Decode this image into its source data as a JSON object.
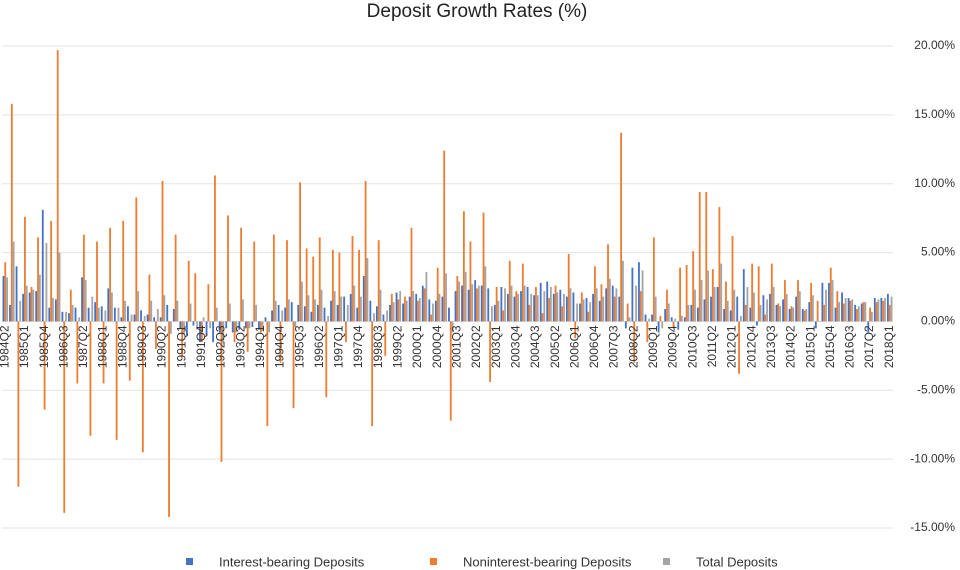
{
  "chart_data": {
    "type": "bar",
    "title": "Deposit Growth Rates (%)",
    "categories": [
      "1984Q2",
      null,
      null,
      "1985Q1",
      null,
      null,
      "1985Q4",
      null,
      null,
      "1986Q3",
      null,
      null,
      "1987Q2",
      null,
      null,
      "1988Q1",
      null,
      null,
      "1988Q4",
      null,
      null,
      "1989Q3",
      null,
      null,
      "1990Q2",
      null,
      null,
      "1991Q1",
      null,
      null,
      "1991Q4",
      null,
      null,
      "1992Q3",
      null,
      null,
      "1993Q2",
      null,
      null,
      "1994Q1",
      null,
      null,
      "1994Q4",
      null,
      null,
      "1995Q3",
      null,
      null,
      "1996Q2",
      null,
      null,
      "1997Q1",
      null,
      null,
      "1997Q4",
      null,
      null,
      "1998Q3",
      null,
      null,
      "1999Q2",
      null,
      null,
      "2000Q1",
      null,
      null,
      "2000Q4",
      null,
      null,
      "2001Q3",
      null,
      null,
      "2002Q2",
      null,
      null,
      "2003Q1",
      null,
      null,
      "2003Q4",
      null,
      null,
      "2004Q3",
      null,
      null,
      "2005Q2",
      null,
      null,
      "2006Q1",
      null,
      null,
      "2006Q4",
      null,
      null,
      "2007Q3",
      null,
      null,
      "2008Q2",
      null,
      null,
      "2009Q1",
      null,
      null,
      "2009Q4",
      null,
      null,
      "2010Q3",
      null,
      null,
      "2011Q2",
      null,
      null,
      "2012Q1",
      null,
      null,
      "2012Q4",
      null,
      null,
      "2013Q3",
      null,
      null,
      "2014Q2",
      null,
      null,
      "2015Q1",
      null,
      null,
      "2015Q4",
      null,
      null,
      "2016Q3",
      null,
      null,
      "2017Q2",
      null,
      null,
      "2018Q1"
    ],
    "series": [
      {
        "name": "Interest-bearing Deposits",
        "color": "#4472c4",
        "values": [
          3.3,
          1.2,
          4.0,
          2.0,
          2.1,
          2.2,
          8.1,
          1.0,
          1.6,
          0.7,
          0.6,
          1.0,
          3.2,
          1.0,
          1.4,
          1.1,
          2.4,
          1.0,
          0.3,
          1.1,
          0.5,
          0.8,
          0.5,
          0.3,
          0.3,
          1.2,
          0.9,
          -0.5,
          -1.0,
          -0.3,
          -1.5,
          -1.0,
          -1.5,
          -0.8,
          -0.5,
          -0.8,
          -0.6,
          -0.5,
          -0.4,
          -0.6,
          0.3,
          0.8,
          1.2,
          1.0,
          1.4,
          1.2,
          1.1,
          0.7,
          1.2,
          1.0,
          1.5,
          1.2,
          1.8,
          2.0,
          1.0,
          3.3,
          1.5,
          1.1,
          0.5,
          1.2,
          2.1,
          1.3,
          1.8,
          2.0,
          2.6,
          1.6,
          1.5,
          1.8,
          1.0,
          2.2,
          2.6,
          2.3,
          3.0,
          2.6,
          2.4,
          1.2,
          2.5,
          2.0,
          1.8,
          2.2,
          2.5,
          1.9,
          2.8,
          2.9,
          2.0,
          2.3,
          1.8,
          2.1,
          1.3,
          1.7,
          2.0,
          1.5,
          2.4,
          2.6,
          1.8,
          -0.5,
          3.9,
          4.3,
          0.5,
          0.5,
          -0.8,
          0.9,
          0.3,
          -0.6,
          0.3,
          1.2,
          1.0,
          1.6,
          1.8,
          2.5,
          0.9,
          0.8,
          1.8,
          3.8,
          1.0,
          -0.3,
          1.9,
          2.0,
          1.2,
          1.6,
          0.9,
          1.8,
          0.9,
          1.4,
          -0.5,
          2.8,
          2.8,
          1.0,
          2.1,
          1.7,
          1.2,
          1.3,
          -0.8,
          1.7,
          1.7,
          2.0
        ]
      },
      {
        "name": "Noninterest-bearing Deposits",
        "color": "#ed7d31",
        "values": [
          4.3,
          15.8,
          -12.0,
          7.6,
          2.5,
          6.1,
          -6.4,
          7.3,
          19.7,
          -13.9,
          2.3,
          -4.5,
          6.3,
          -8.3,
          5.8,
          -4.5,
          6.8,
          -8.6,
          7.3,
          -4.3,
          9.0,
          -9.5,
          3.4,
          -2.0,
          10.2,
          -14.2,
          6.3,
          -2.5,
          4.4,
          3.5,
          -1.5,
          2.7,
          10.6,
          -10.2,
          7.7,
          -1.5,
          6.8,
          -2.2,
          5.8,
          -0.8,
          -7.6,
          6.3,
          -3.0,
          5.9,
          -6.3,
          10.1,
          5.3,
          4.7,
          6.1,
          -5.5,
          5.2,
          5.0,
          -1.5,
          6.2,
          5.2,
          10.2,
          -7.6,
          5.9,
          -2.5,
          2.0,
          1.6,
          1.8,
          6.8,
          1.5,
          2.4,
          0.5,
          3.9,
          12.4,
          -7.2,
          3.3,
          8.0,
          5.8,
          2.4,
          7.9,
          -4.4,
          2.5,
          0.8,
          4.4,
          2.2,
          4.2,
          1.2,
          2.5,
          0.6,
          1.7,
          2.6,
          1.1,
          4.9,
          -1.2,
          2.1,
          0.7,
          4.0,
          2.7,
          5.6,
          1.8,
          13.7,
          1.3,
          -3.0,
          2.2,
          -1.5,
          6.1,
          0.4,
          2.3,
          -0.5,
          3.9,
          4.1,
          5.1,
          9.4,
          9.4,
          3.8,
          8.3,
          2.9,
          6.2,
          -3.8,
          1.2,
          4.2,
          4.0,
          0.5,
          4.2,
          1.3,
          3.0,
          1.1,
          3.0,
          0.8,
          2.8,
          1.5,
          1.2,
          3.9,
          2.2,
          1.3,
          1.5,
          0.9,
          1.4,
          1.0,
          1.4,
          1.5,
          1.2
        ]
      },
      {
        "name": "Total Deposits",
        "color": "#a5a5a5",
        "values": [
          3.2,
          5.8,
          1.5,
          2.6,
          2.3,
          3.4,
          5.7,
          1.7,
          5.0,
          0.7,
          1.2,
          0.3,
          3.0,
          1.8,
          1.0,
          0.8,
          2.1,
          1.0,
          1.5,
          0.5,
          2.2,
          0.4,
          1.5,
          0.9,
          1.9,
          -0.9,
          1.5,
          -0.9,
          1.3,
          -0.6,
          0.3,
          -0.5,
          1.0,
          -1.6,
          1.3,
          -0.8,
          1.6,
          -0.5,
          1.2,
          -0.7,
          -0.8,
          1.5,
          0.8,
          1.6,
          -0.4,
          2.9,
          1.9,
          1.6,
          2.3,
          0.4,
          2.2,
          1.8,
          1.2,
          2.6,
          1.8,
          4.6,
          0.6,
          2.3,
          0.8,
          1.4,
          2.2,
          1.5,
          2.2,
          1.7,
          3.6,
          1.3,
          2.0,
          3.5,
          -0.8,
          2.9,
          3.6,
          2.7,
          2.6,
          4.0,
          1.1,
          1.5,
          2.4,
          2.6,
          2.0,
          2.6,
          2.0,
          1.9,
          2.2,
          2.5,
          2.1,
          2.0,
          2.4,
          1.3,
          1.6,
          1.4,
          2.4,
          1.8,
          3.1,
          2.4,
          4.4,
          0.3,
          2.6,
          3.7,
          0.2,
          1.8,
          -0.5,
          1.3,
          0.2,
          0.4,
          1.2,
          2.3,
          3.0,
          3.7,
          2.5,
          4.2,
          1.5,
          2.3,
          0.4,
          2.5,
          2.1,
          1.2,
          1.6,
          2.5,
          1.1,
          2.0,
          1.0,
          2.2,
          0.9,
          1.9,
          0.0,
          2.3,
          3.0,
          1.4,
          1.7,
          1.6,
          1.1,
          1.4,
          0.7,
          1.6,
          1.7,
          1.8
        ]
      }
    ],
    "ylim": [
      -15,
      20
    ],
    "yticks": [
      {
        "value": 20,
        "label": "20.00%"
      },
      {
        "value": 15,
        "label": "15.00%"
      },
      {
        "value": 10,
        "label": "10.00%"
      },
      {
        "value": 5,
        "label": "5.00%"
      },
      {
        "value": 0,
        "label": "0.00%"
      },
      {
        "value": -5,
        "label": "-5.00%"
      },
      {
        "value": -10,
        "label": "-10.00%"
      },
      {
        "value": -15,
        "label": "-15.00%"
      }
    ],
    "grid": true,
    "legend": "bottom"
  }
}
